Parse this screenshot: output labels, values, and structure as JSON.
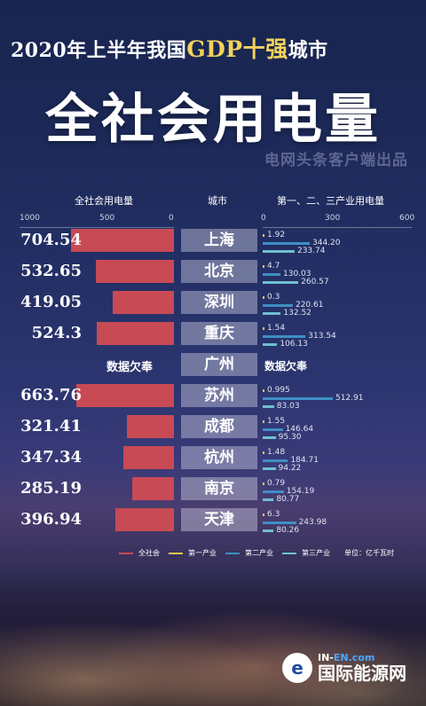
{
  "header": {
    "title_prefix": "2020年上半年我国",
    "title_highlight": "GDP十强",
    "title_suffix": "城市",
    "big_title": "全社会用电量",
    "source": "电网头条客户端出品"
  },
  "columns": {
    "left": "全社会用电量",
    "center": "城市",
    "right": "第一、二、三产业用电量"
  },
  "axes": {
    "left_ticks": [
      "1000",
      "500",
      "0"
    ],
    "right_ticks": [
      "0",
      "300",
      "600"
    ]
  },
  "legend": {
    "items": [
      "全社会",
      "第一产业",
      "第二产业",
      "第三产业"
    ],
    "unit": "单位：亿千瓦时"
  },
  "colors": {
    "total": "#c84a55",
    "primary": "#e6c44f",
    "secondary": "#3f8fc4",
    "tertiary": "#6fc0d0"
  },
  "missing_text": "数据欠奉",
  "logo": {
    "top_prefix": "IN-",
    "top_suffix": "EN.com",
    "bottom": "国际能源网"
  },
  "chart_data": {
    "type": "bar",
    "unit": "亿千瓦时",
    "categories": [
      "上海",
      "北京",
      "深圳",
      "重庆",
      "广州",
      "苏州",
      "成都",
      "杭州",
      "南京",
      "天津"
    ],
    "series": [
      {
        "name": "全社会",
        "values": [
          704.54,
          532.65,
          419.05,
          524.3,
          null,
          663.76,
          321.41,
          347.34,
          285.19,
          396.94
        ],
        "labels": [
          "704.54",
          "532.65",
          "419.05",
          "524.3",
          null,
          "663.76",
          "321.41",
          "347.34",
          "285.19",
          "396.94"
        ]
      },
      {
        "name": "第一产业",
        "values": [
          1.92,
          4.7,
          0.3,
          1.54,
          null,
          0.995,
          1.55,
          1.48,
          0.79,
          6.3
        ],
        "labels": [
          "1.92",
          "4.7",
          "0.3",
          "1.54",
          null,
          "0.995",
          "1.55",
          "1.48",
          "0.79",
          "6.3"
        ]
      },
      {
        "name": "第二产业",
        "values": [
          344.2,
          130.03,
          220.61,
          313.54,
          null,
          512.91,
          146.64,
          184.71,
          154.19,
          243.98
        ],
        "labels": [
          "344.20",
          "130.03",
          "220.61",
          "313.54",
          null,
          "512.91",
          "146.64",
          "184.71",
          "154.19",
          "243.98"
        ]
      },
      {
        "name": "第三产业",
        "values": [
          233.74,
          260.57,
          132.52,
          106.13,
          null,
          83.03,
          95.3,
          94.22,
          80.77,
          80.26
        ],
        "labels": [
          "233.74",
          "260.57",
          "132.52",
          "106.13",
          null,
          "83.03",
          "95.30",
          "94.22",
          "80.77",
          "80.26"
        ]
      }
    ],
    "xlim_left": [
      1000,
      0
    ],
    "xlim_right": [
      0,
      600
    ]
  }
}
